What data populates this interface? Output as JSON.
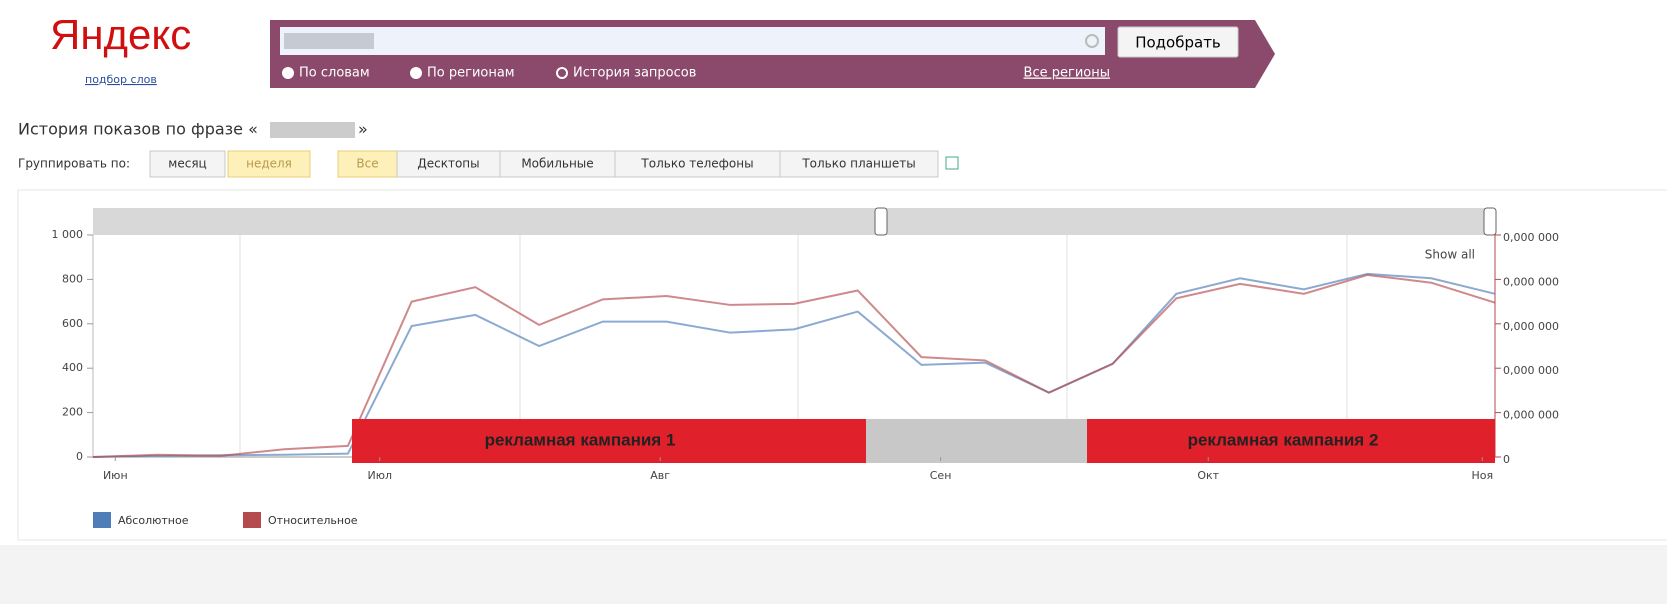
{
  "header": {
    "logo": "Яндекс",
    "logo_sub": "подбор слов",
    "button": "Подобрать",
    "options": [
      "По словам",
      "По регионам",
      "История запросов"
    ],
    "regions": "Все регионы"
  },
  "phrase_title": "История показов по фразе «",
  "phrase_close": "»",
  "group_label": "Группировать по:",
  "group_buttons": [
    "месяц",
    "неделя"
  ],
  "device_tabs": [
    "Все",
    "Десктопы",
    "Мобильные",
    "Только телефоны",
    "Только планшеты"
  ],
  "chart_data": {
    "type": "line",
    "show_all": "Show all",
    "x": [
      0,
      1,
      2,
      3,
      4,
      5,
      6,
      7,
      8,
      9,
      10,
      11,
      12,
      13,
      14,
      15,
      16,
      17,
      18,
      19,
      20,
      21,
      22
    ],
    "xlim": [
      0,
      22
    ],
    "xticks": [
      {
        "value": 0.35,
        "label": "Июн"
      },
      {
        "value": 4.5,
        "label": "Июл"
      },
      {
        "value": 8.9,
        "label": "Авг"
      },
      {
        "value": 13.3,
        "label": "Сен"
      },
      {
        "value": 17.5,
        "label": "Окт"
      },
      {
        "value": 21.8,
        "label": "Ноя"
      }
    ],
    "ylim": [
      0,
      1000
    ],
    "yticks": [
      0,
      200,
      400,
      600,
      800,
      {
        "value": 1000,
        "label": "1 000"
      }
    ],
    "y2lim": [
      0,
      1e-06
    ],
    "y2ticks": [
      0,
      {
        "value": 2e-07,
        "label": "0,000 000"
      },
      {
        "value": 4e-07,
        "label": "0,000 000"
      },
      {
        "value": 6e-07,
        "label": "0,000 000"
      },
      {
        "value": 8e-07,
        "label": "0,000 000"
      },
      {
        "value": 1e-06,
        "label": "0,000 000"
      }
    ],
    "series": [
      {
        "name": "Абсолютное",
        "color": "#4f7db8",
        "values": [
          0,
          5,
          8,
          10,
          15,
          590,
          640,
          500,
          610,
          610,
          560,
          575,
          655,
          415,
          425,
          290,
          420,
          735,
          805,
          755,
          825,
          805,
          735
        ]
      },
      {
        "name": "Относительное",
        "color": "#b54a4f",
        "values": [
          0,
          10,
          5,
          35,
          50,
          700,
          765,
          595,
          710,
          725,
          685,
          690,
          750,
          450,
          435,
          290,
          420,
          715,
          780,
          735,
          820,
          785,
          695
        ]
      }
    ],
    "annotations": [
      "рекламная кампания 1",
      "рекламная кампания 2"
    ]
  }
}
